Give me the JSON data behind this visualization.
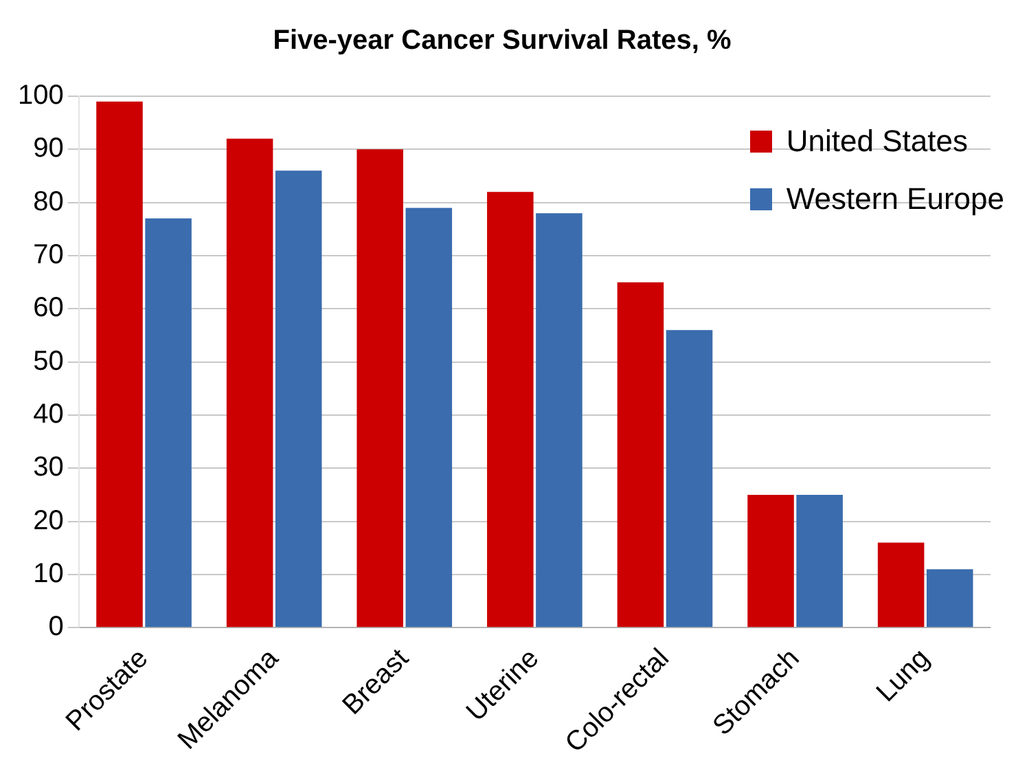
{
  "chart_data": {
    "type": "bar",
    "title": "Five-year Cancer Survival Rates, %",
    "categories": [
      "Prostate",
      "Melanoma",
      "Breast",
      "Uterine",
      "Colo-rectal",
      "Stomach",
      "Lung"
    ],
    "series": [
      {
        "name": "United States",
        "color": "#cc0000",
        "values": [
          99,
          92,
          90,
          82,
          65,
          25,
          16
        ]
      },
      {
        "name": "Western Europe",
        "color": "#3a6cae",
        "values": [
          77,
          86,
          79,
          78,
          56,
          25,
          11
        ]
      }
    ],
    "ylim": [
      0,
      100
    ],
    "yticks": [
      0,
      10,
      20,
      30,
      40,
      50,
      60,
      70,
      80,
      90,
      100
    ],
    "grid": "y",
    "legend": "top right"
  }
}
